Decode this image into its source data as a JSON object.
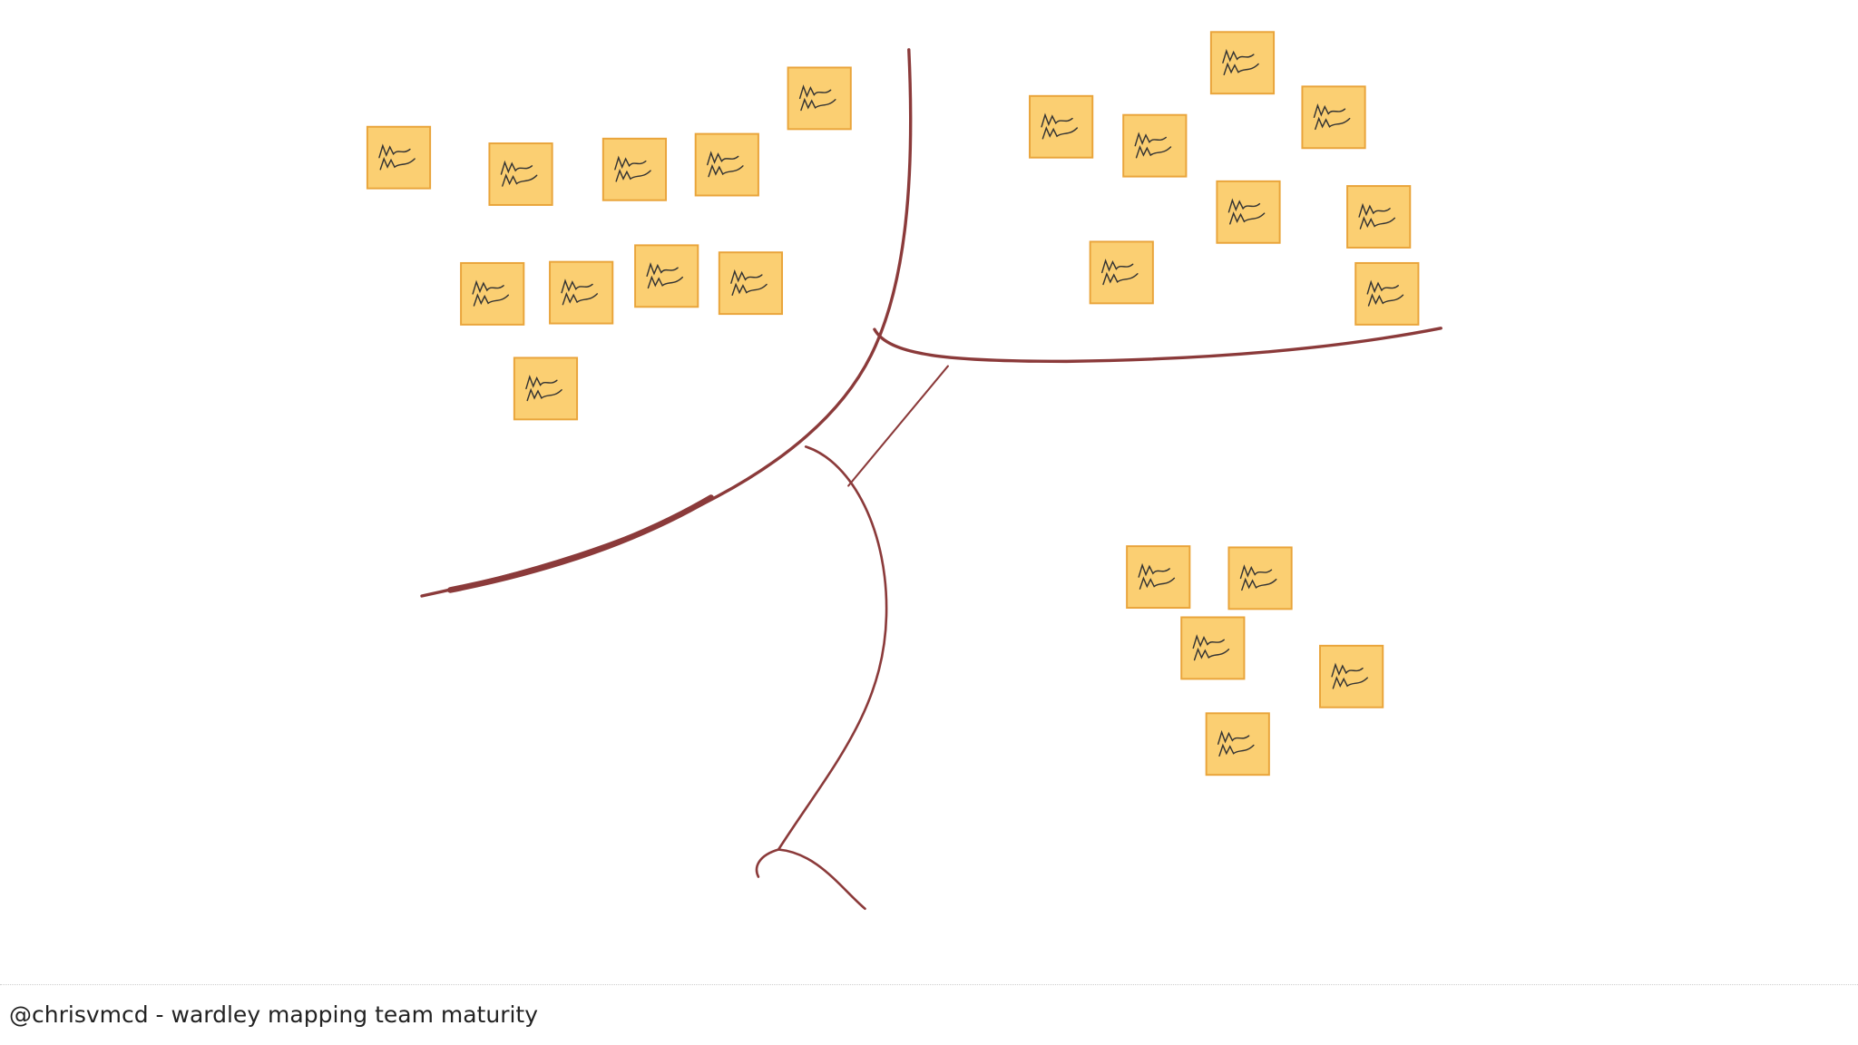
{
  "footer": "@chrisvmcd - wardley mapping team maturity"
}
